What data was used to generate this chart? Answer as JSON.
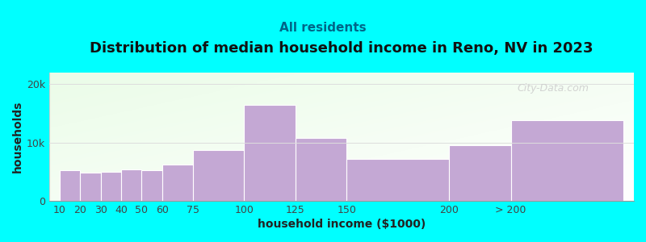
{
  "title": "Distribution of median household income in Reno, NV in 2023",
  "subtitle": "All residents",
  "xlabel": "household income ($1000)",
  "ylabel": "households",
  "background_color": "#00FFFF",
  "bar_color": "#c4a8d4",
  "bar_edge_color": "#ffffff",
  "categories": [
    "10",
    "20",
    "30",
    "40",
    "50",
    "60",
    "75",
    "100",
    "125",
    "150",
    "200",
    "> 200"
  ],
  "values": [
    5200,
    4900,
    5000,
    5400,
    5300,
    6200,
    8700,
    16500,
    10800,
    7200,
    9500,
    13800
  ],
  "bar_positions": [
    10,
    20,
    30,
    40,
    50,
    60,
    75,
    100,
    125,
    150,
    200,
    230
  ],
  "actual_widths": [
    10,
    10,
    10,
    10,
    10,
    15,
    25,
    25,
    25,
    50,
    30,
    55
  ],
  "ylim": [
    0,
    22000
  ],
  "yticks": [
    0,
    10000,
    20000
  ],
  "ytick_labels": [
    "0",
    "10k",
    "20k"
  ],
  "watermark": "City-Data.com",
  "title_fontsize": 13,
  "subtitle_fontsize": 11,
  "axis_label_fontsize": 10,
  "tick_fontsize": 9,
  "xlim_left": 5,
  "xlim_right": 290
}
